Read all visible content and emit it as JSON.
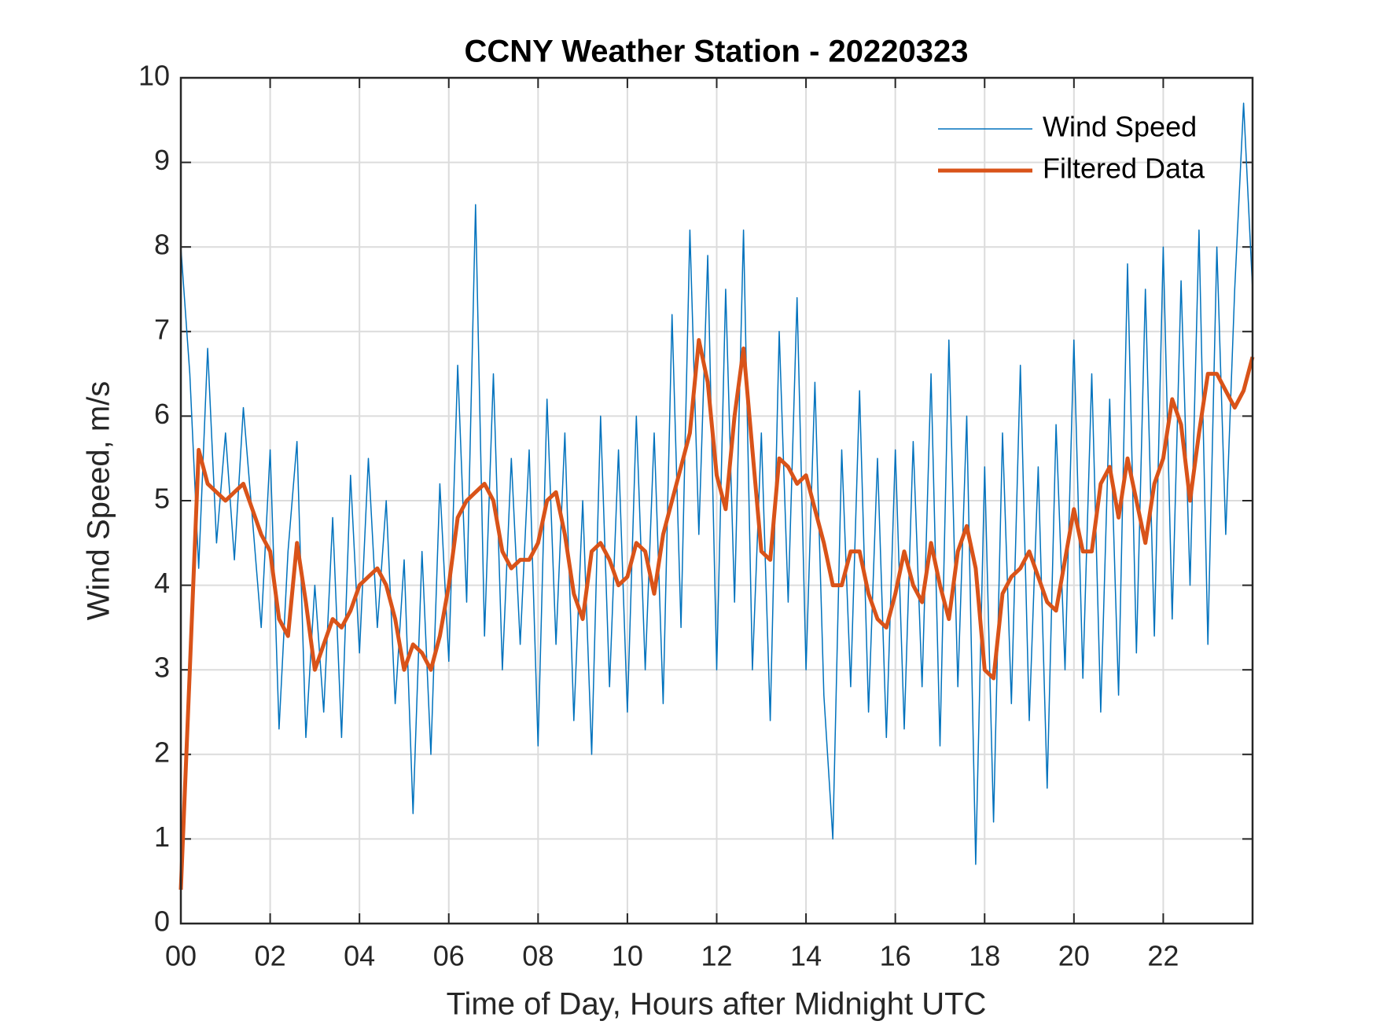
{
  "chart_data": {
    "type": "line",
    "title": "CCNY Weather Station - 20220323",
    "x_label": "Time of Day, Hours after Midnight UTC",
    "y_label": "Wind Speed, m/s",
    "xlim": [
      0,
      24
    ],
    "ylim": [
      0,
      10
    ],
    "xticks": [
      {
        "value": 0,
        "label": "00"
      },
      {
        "value": 2,
        "label": "02"
      },
      {
        "value": 4,
        "label": "04"
      },
      {
        "value": 6,
        "label": "06"
      },
      {
        "value": 8,
        "label": "08"
      },
      10,
      12,
      14,
      16,
      18,
      20,
      22
    ],
    "yticks": [
      0,
      1,
      2,
      3,
      4,
      5,
      6,
      7,
      8,
      9,
      10
    ],
    "grid": true,
    "legend": "northeast",
    "x": [
      0,
      0.2,
      0.4,
      0.6,
      0.8,
      1,
      1.2,
      1.4,
      1.6,
      1.8,
      2,
      2.2,
      2.4,
      2.6,
      2.8,
      3,
      3.2,
      3.4,
      3.6,
      3.8,
      4,
      4.2,
      4.4,
      4.6,
      4.8,
      5,
      5.2,
      5.4,
      5.6,
      5.8,
      6,
      6.2,
      6.4,
      6.6,
      6.8,
      7,
      7.2,
      7.4,
      7.6,
      7.8,
      8,
      8.2,
      8.4,
      8.6,
      8.8,
      9,
      9.2,
      9.4,
      9.6,
      9.8,
      10,
      10.2,
      10.4,
      10.6,
      10.8,
      11,
      11.2,
      11.4,
      11.6,
      11.8,
      12,
      12.2,
      12.4,
      12.6,
      12.8,
      13,
      13.2,
      13.4,
      13.6,
      13.8,
      14,
      14.2,
      14.4,
      14.6,
      14.8,
      15,
      15.2,
      15.4,
      15.6,
      15.8,
      16,
      16.2,
      16.4,
      16.6,
      16.8,
      17,
      17.2,
      17.4,
      17.6,
      17.8,
      18,
      18.2,
      18.4,
      18.6,
      18.8,
      19,
      19.2,
      19.4,
      19.6,
      19.8,
      20,
      20.2,
      20.4,
      20.6,
      20.8,
      21,
      21.2,
      21.4,
      21.6,
      21.8,
      22,
      22.2,
      22.4,
      22.6,
      22.8,
      23,
      23.2,
      23.4,
      23.6,
      23.8,
      24
    ],
    "series": [
      {
        "name": "Wind Speed",
        "color": "#0072BD",
        "width": 1.5,
        "values": [
          8.0,
          6.5,
          4.2,
          6.8,
          4.5,
          5.8,
          4.3,
          6.1,
          4.8,
          3.5,
          5.6,
          2.3,
          4.4,
          5.7,
          2.2,
          4.0,
          2.5,
          4.8,
          2.2,
          5.3,
          3.2,
          5.5,
          3.5,
          5.0,
          2.6,
          4.3,
          1.3,
          4.4,
          2.0,
          5.2,
          3.1,
          6.6,
          3.8,
          8.5,
          3.4,
          6.5,
          3.0,
          5.5,
          3.3,
          5.6,
          2.1,
          6.2,
          3.3,
          5.8,
          2.4,
          5.0,
          2.0,
          6.0,
          2.8,
          5.6,
          2.5,
          6.0,
          3.0,
          5.8,
          2.6,
          7.2,
          3.5,
          8.2,
          4.6,
          7.9,
          3.0,
          7.5,
          3.8,
          8.2,
          3.0,
          5.8,
          2.4,
          7.0,
          3.8,
          7.4,
          3.0,
          6.4,
          2.7,
          1.0,
          5.6,
          2.8,
          6.3,
          2.5,
          5.5,
          2.2,
          5.6,
          2.3,
          5.7,
          2.8,
          6.5,
          2.1,
          6.9,
          2.8,
          6.0,
          0.7,
          5.4,
          1.2,
          5.8,
          2.6,
          6.6,
          2.4,
          5.4,
          1.6,
          5.9,
          3.0,
          6.9,
          2.9,
          6.5,
          2.5,
          6.2,
          2.7,
          7.8,
          3.2,
          7.5,
          3.4,
          8.0,
          3.6,
          7.6,
          4.0,
          8.2,
          3.3,
          8.0,
          4.6,
          7.5,
          9.7,
          7.5
        ]
      },
      {
        "name": "Filtered Data",
        "color": "#D95319",
        "width": 5,
        "values": [
          0.4,
          3.0,
          5.6,
          5.2,
          5.1,
          5.0,
          5.1,
          5.2,
          4.9,
          4.6,
          4.4,
          3.6,
          3.4,
          4.5,
          3.8,
          3.0,
          3.3,
          3.6,
          3.5,
          3.7,
          4.0,
          4.1,
          4.2,
          4.0,
          3.6,
          3.0,
          3.3,
          3.2,
          3.0,
          3.4,
          4.0,
          4.8,
          5.0,
          5.1,
          5.2,
          5.0,
          4.4,
          4.2,
          4.3,
          4.3,
          4.5,
          5.0,
          5.1,
          4.6,
          3.9,
          3.6,
          4.4,
          4.5,
          4.3,
          4.0,
          4.1,
          4.5,
          4.4,
          3.9,
          4.6,
          5.0,
          5.4,
          5.8,
          6.9,
          6.4,
          5.3,
          4.9,
          6.0,
          6.8,
          5.6,
          4.4,
          4.3,
          5.5,
          5.4,
          5.2,
          5.3,
          4.9,
          4.5,
          4.0,
          4.0,
          4.4,
          4.4,
          3.9,
          3.6,
          3.5,
          3.9,
          4.4,
          4.0,
          3.8,
          4.5,
          4.0,
          3.6,
          4.4,
          4.7,
          4.2,
          3.0,
          2.9,
          3.9,
          4.1,
          4.2,
          4.4,
          4.1,
          3.8,
          3.7,
          4.3,
          4.9,
          4.4,
          4.4,
          5.2,
          5.4,
          4.8,
          5.5,
          5.0,
          4.5,
          5.2,
          5.5,
          6.2,
          5.9,
          5.0,
          5.8,
          6.5,
          6.5,
          6.3,
          6.1,
          6.3,
          6.7
        ]
      }
    ]
  }
}
